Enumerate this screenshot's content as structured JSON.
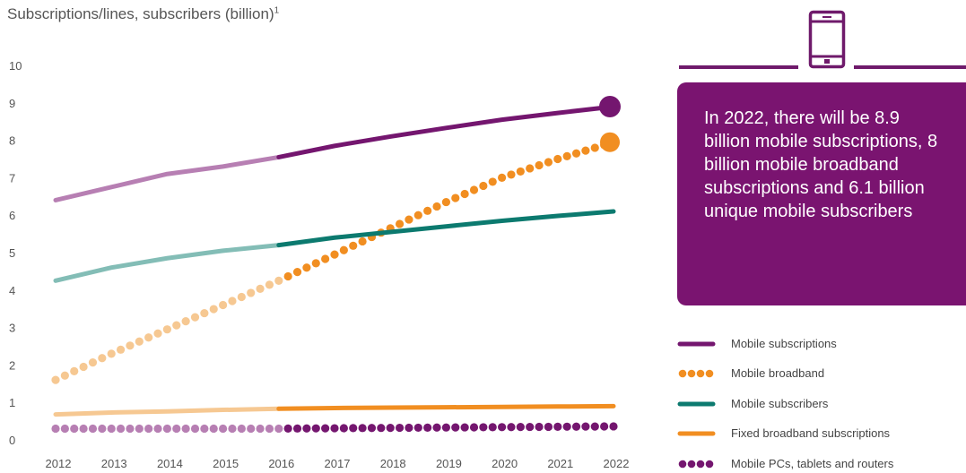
{
  "chart_data": {
    "type": "line",
    "title": "Subscriptions/lines, subscribers (billion)",
    "title_footnote": "1",
    "categories": [
      "2012",
      "2013",
      "2014",
      "2015",
      "2016",
      "2017",
      "2018",
      "2019",
      "2020",
      "2021",
      "2022"
    ],
    "y_ticks": [
      "0",
      "1",
      "2",
      "3",
      "4",
      "5",
      "6",
      "7",
      "8",
      "9",
      "10"
    ],
    "ylim": [
      0,
      10
    ],
    "grid": false,
    "legend_position": "bottom-right",
    "history_end": "2016",
    "series": [
      {
        "key": "mobile_subscriptions",
        "name": "Mobile subscriptions",
        "style": "solid",
        "color": "#74166f",
        "history_color": "#b77fb3",
        "values": [
          6.4,
          6.75,
          7.1,
          7.3,
          7.55,
          7.85,
          8.1,
          8.33,
          8.55,
          8.73,
          8.9
        ]
      },
      {
        "key": "mobile_broadband",
        "name": "Mobile broadband",
        "style": "dotted",
        "color": "#f18e21",
        "history_color": "#f6c892",
        "values": [
          1.6,
          2.3,
          2.95,
          3.6,
          4.25,
          4.95,
          5.65,
          6.35,
          7.0,
          7.5,
          7.95
        ]
      },
      {
        "key": "mobile_subscribers",
        "name": "Mobile subscribers",
        "style": "solid",
        "color": "#0c7a6f",
        "history_color": "#83bdb6",
        "values": [
          4.25,
          4.6,
          4.85,
          5.05,
          5.2,
          5.4,
          5.55,
          5.7,
          5.85,
          5.98,
          6.1
        ]
      },
      {
        "key": "fixed_broadband",
        "name": "Fixed broadband subscriptions",
        "style": "solid",
        "color": "#f18e21",
        "history_color": "#f6c892",
        "values": [
          0.68,
          0.73,
          0.76,
          0.8,
          0.83,
          0.85,
          0.86,
          0.87,
          0.88,
          0.89,
          0.9
        ]
      },
      {
        "key": "mobile_pcs",
        "name": "Mobile PCs, tablets and routers",
        "style": "dotted",
        "color": "#74166f",
        "history_color": "#b77fb3",
        "values": [
          0.3,
          0.3,
          0.3,
          0.3,
          0.3,
          0.31,
          0.32,
          0.33,
          0.34,
          0.35,
          0.36
        ]
      }
    ]
  },
  "callout": {
    "text": "In 2022, there will be 8.9 billion mobile subscriptions, 8 billion mobile broadband subscriptions and 6.1 billion unique mobile subscribers",
    "background": "#7a1470"
  },
  "icon": {
    "name": "smartphone-icon"
  },
  "accent_color": "#6f1a6b"
}
